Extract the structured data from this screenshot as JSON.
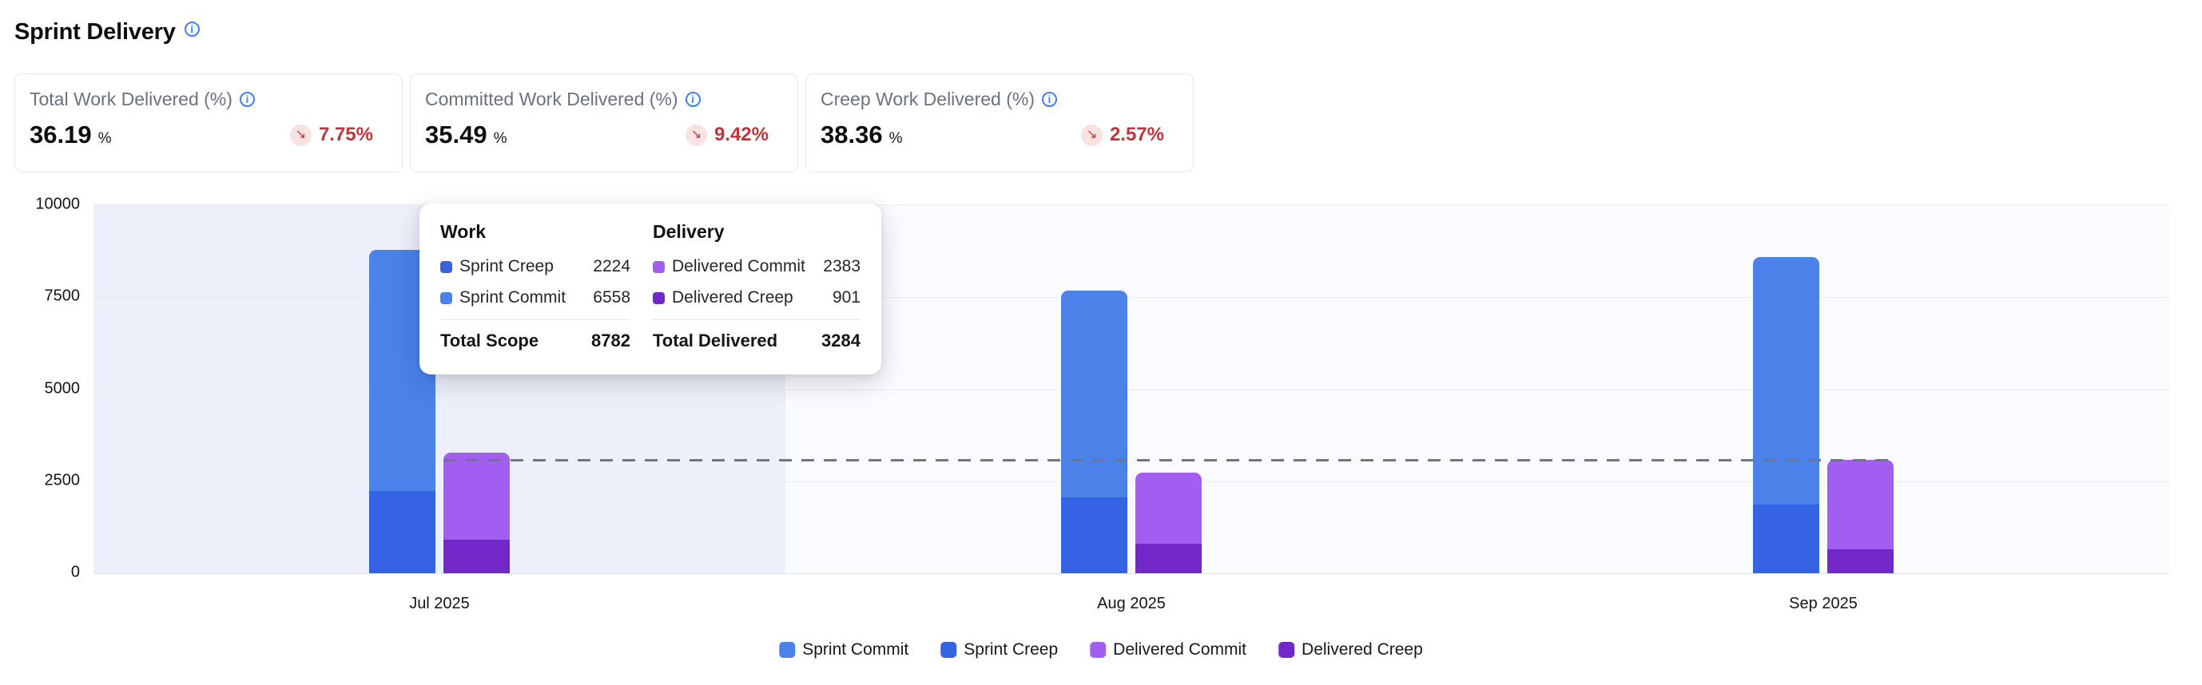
{
  "header": {
    "title": "Sprint Delivery"
  },
  "icons": {
    "info": "i",
    "trend_down": "↘"
  },
  "kpis": [
    {
      "label": "Total Work Delivered (%)",
      "value": "36.19",
      "unit": "%",
      "delta": "7.75%",
      "trend": "down"
    },
    {
      "label": "Committed Work Delivered (%)",
      "value": "35.49",
      "unit": "%",
      "delta": "9.42%",
      "trend": "down"
    },
    {
      "label": "Creep Work Delivered (%)",
      "value": "38.36",
      "unit": "%",
      "delta": "2.57%",
      "trend": "down"
    }
  ],
  "kpi_colors": {
    "delta_text": "#C0343C",
    "delta_bg": "#F9E2E2",
    "label": "#6A7282",
    "info": "#3D7FF5"
  },
  "tooltip": {
    "work": {
      "title": "Work",
      "rows": [
        {
          "label": "Sprint Creep",
          "value": "2224",
          "color": "#3663E3"
        },
        {
          "label": "Sprint Commit",
          "value": "6558",
          "color": "#4A82EA"
        }
      ],
      "total_label": "Total Scope",
      "total_value": "8782"
    },
    "delivery": {
      "title": "Delivery",
      "rows": [
        {
          "label": "Delivered Commit",
          "value": "2383",
          "color": "#A15EF0"
        },
        {
          "label": "Delivered Creep",
          "value": "901",
          "color": "#7227C9"
        }
      ],
      "total_label": "Total Delivered",
      "total_value": "3284"
    }
  },
  "chart_data": {
    "type": "bar",
    "stacked": true,
    "categories": [
      "Jul 2025",
      "Aug 2025",
      "Sep 2025"
    ],
    "series": [
      {
        "name": "Sprint Commit",
        "color": "#4A82EA",
        "values": [
          6558,
          5640,
          6740
        ]
      },
      {
        "name": "Sprint Creep",
        "color": "#3663E3",
        "values": [
          2224,
          2050,
          1860
        ]
      },
      {
        "name": "Delivered Commit",
        "color": "#A15EF0",
        "values": [
          2383,
          1930,
          2420
        ]
      },
      {
        "name": "Delivered Creep",
        "color": "#7227C9",
        "values": [
          901,
          800,
          650
        ]
      }
    ],
    "bars": [
      {
        "name": "work",
        "segments_bottom_to_top": [
          "Sprint Creep",
          "Sprint Commit"
        ]
      },
      {
        "name": "delivered",
        "segments_bottom_to_top": [
          "Delivered Creep",
          "Delivered Commit"
        ]
      }
    ],
    "totals": {
      "scope": [
        8782,
        7690,
        8600
      ],
      "delivered": [
        3284,
        2730,
        3070
      ]
    },
    "yticks": [
      0,
      2500,
      5000,
      7500,
      10000
    ],
    "ylim": [
      0,
      10000
    ],
    "reference_line": 3100,
    "legend": [
      "Sprint Commit",
      "Sprint Creep",
      "Delivered Commit",
      "Delivered Creep"
    ],
    "highlighted_category": "Jul 2025",
    "grid": true,
    "legend_position": "bottom-center",
    "plot_colors": {
      "background": "#FAFBFE",
      "highlight_band": "#EDEFFA",
      "gridline": "#E9EBF2",
      "reference_dash": "#6F7681"
    }
  }
}
